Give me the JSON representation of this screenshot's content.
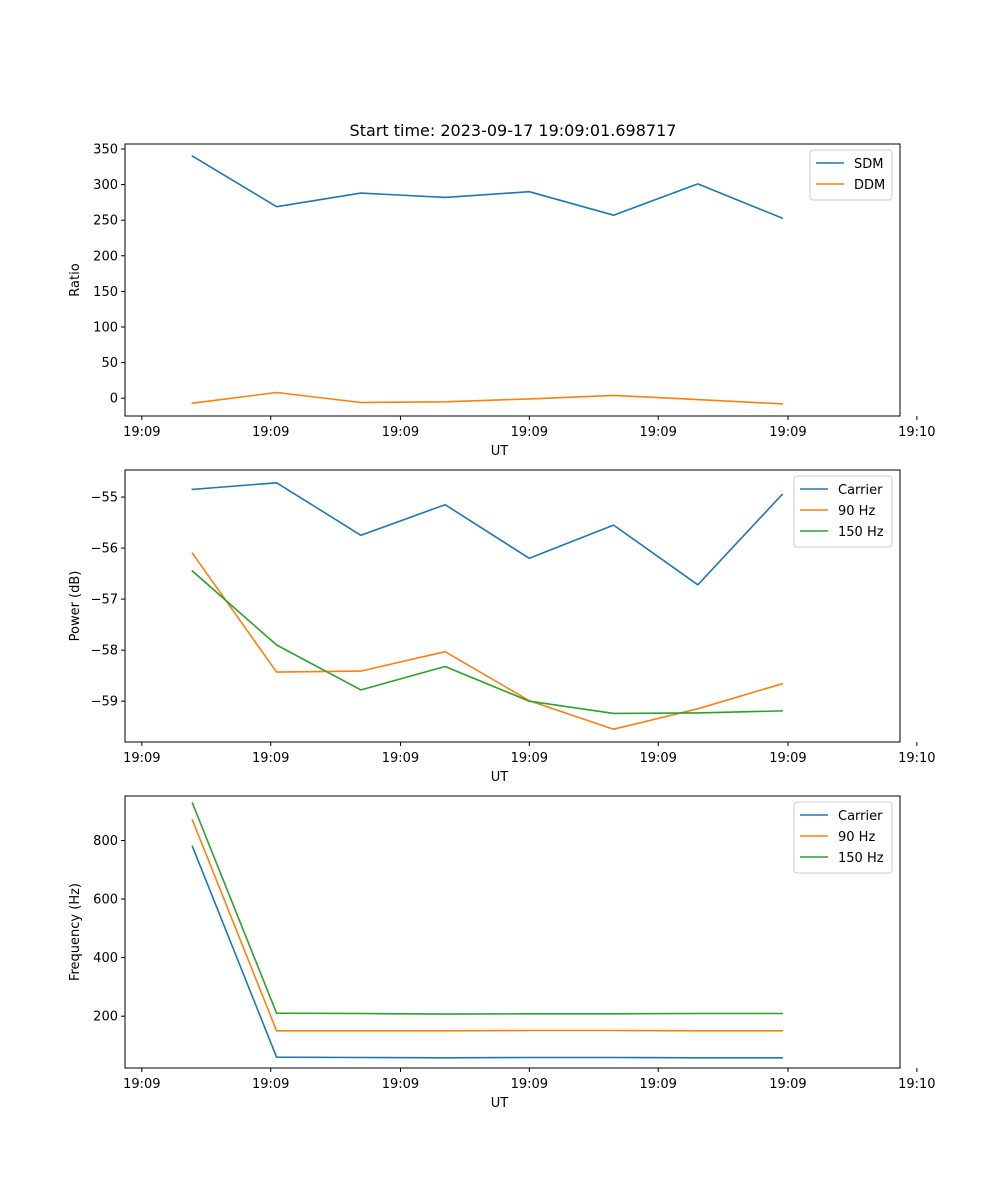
{
  "title": "Start time: 2023-09-17 19:09:01.698717",
  "colors": {
    "blue": "#1f77b4",
    "orange": "#ff7f0e",
    "green": "#2ca02c"
  },
  "chart_data": [
    {
      "type": "line",
      "title": "Start time: 2023-09-17 19:09:01.698717",
      "xlabel": "UT",
      "ylabel": "Ratio",
      "x": [
        1,
        2,
        3,
        4,
        5,
        6,
        7,
        8
      ],
      "xlim": [
        0.2,
        9.4
      ],
      "xticks": [
        0.4,
        1.93,
        3.47,
        5.0,
        6.53,
        8.07,
        9.6
      ],
      "xtick_labels": [
        "19:09",
        "19:09",
        "19:09",
        "19:09",
        "19:09",
        "19:09",
        "19:10"
      ],
      "ylim": [
        -25,
        357
      ],
      "yticks": [
        0,
        50,
        100,
        150,
        200,
        250,
        300,
        350
      ],
      "yticks_labels": [
        "0",
        "50",
        "100",
        "150",
        "200",
        "250",
        "300",
        "350"
      ],
      "legend": "top-right",
      "series": [
        {
          "name": "SDM",
          "color": "#1f77b4",
          "values": [
            340,
            269,
            288,
            282,
            290,
            257,
            301,
            253
          ]
        },
        {
          "name": "DDM",
          "color": "#ff7f0e",
          "values": [
            -7,
            8,
            -6,
            -5,
            -1,
            4,
            -2,
            -8
          ]
        }
      ]
    },
    {
      "type": "line",
      "xlabel": "UT",
      "ylabel": "Power (dB)",
      "x": [
        1,
        2,
        3,
        4,
        5,
        6,
        7,
        8
      ],
      "xlim": [
        0.2,
        9.4
      ],
      "xticks": [
        0.4,
        1.93,
        3.47,
        5.0,
        6.53,
        8.07,
        9.6
      ],
      "xtick_labels": [
        "19:09",
        "19:09",
        "19:09",
        "19:09",
        "19:09",
        "19:09",
        "19:10"
      ],
      "ylim": [
        -59.8,
        -54.47
      ],
      "yticks": [
        -59,
        -58,
        -57,
        -56,
        -55
      ],
      "yticks_labels": [
        "−59",
        "−58",
        "−57",
        "−56",
        "−55"
      ],
      "legend": "top-right",
      "series": [
        {
          "name": "Carrier",
          "color": "#1f77b4",
          "values": [
            -54.85,
            -54.72,
            -55.75,
            -55.15,
            -56.2,
            -55.55,
            -56.72,
            -54.95
          ]
        },
        {
          "name": "90 Hz",
          "color": "#ff7f0e",
          "values": [
            -56.1,
            -58.43,
            -58.41,
            -58.03,
            -58.99,
            -59.55,
            -59.15,
            -58.66
          ]
        },
        {
          "name": "150 Hz",
          "color": "#2ca02c",
          "values": [
            -56.45,
            -57.9,
            -58.78,
            -58.32,
            -59.0,
            -59.24,
            -59.23,
            -59.19
          ]
        }
      ]
    },
    {
      "type": "line",
      "xlabel": "UT",
      "ylabel": "Frequency (Hz)",
      "x": [
        1,
        2,
        3,
        4,
        5,
        6,
        7,
        8
      ],
      "xlim": [
        0.2,
        9.4
      ],
      "xticks": [
        0.4,
        1.93,
        3.47,
        5.0,
        6.53,
        8.07,
        9.6
      ],
      "xtick_labels": [
        "19:09",
        "19:09",
        "19:09",
        "19:09",
        "19:09",
        "19:09",
        "19:10"
      ],
      "ylim": [
        23,
        952
      ],
      "yticks": [
        200,
        400,
        600,
        800
      ],
      "yticks_labels": [
        "200",
        "400",
        "600",
        "800"
      ],
      "legend": "top-right",
      "series": [
        {
          "name": "Carrier",
          "color": "#1f77b4",
          "values": [
            780,
            60,
            59,
            58,
            59,
            59,
            58,
            58
          ]
        },
        {
          "name": "90 Hz",
          "color": "#ff7f0e",
          "values": [
            870,
            150,
            150,
            150,
            151,
            151,
            150,
            150
          ]
        },
        {
          "name": "150 Hz",
          "color": "#2ca02c",
          "values": [
            928,
            210,
            209,
            207,
            208,
            208,
            209,
            209
          ]
        }
      ]
    }
  ]
}
